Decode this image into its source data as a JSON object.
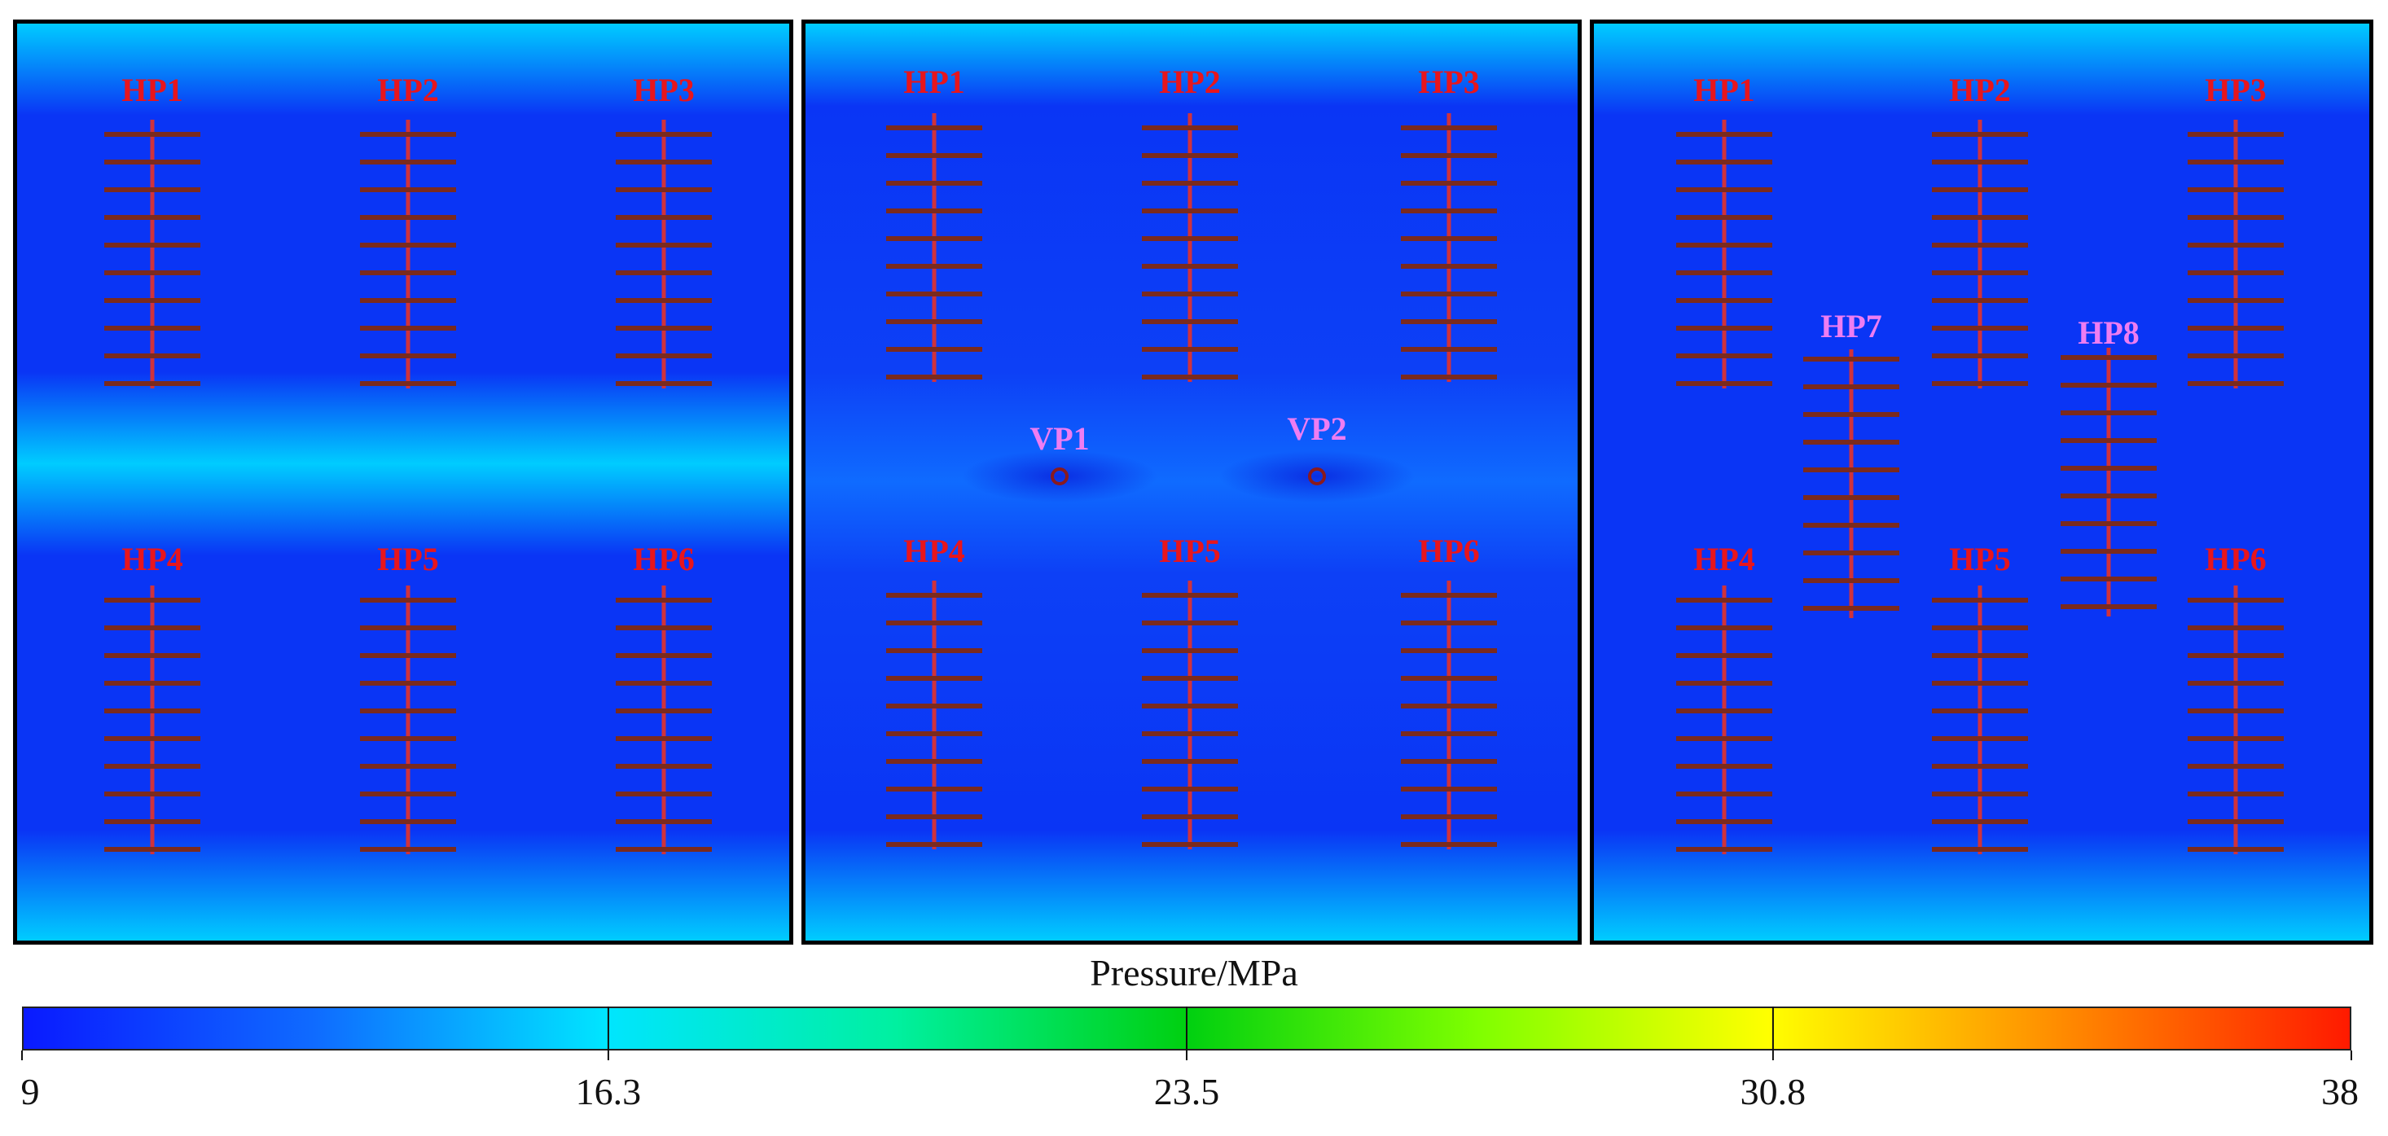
{
  "legend": {
    "title": "Pressure/MPa",
    "min": 9,
    "max": 38,
    "ticks": [
      "9",
      "16.3",
      "23.5",
      "30.8",
      "38"
    ],
    "colors": [
      "#0a1aff",
      "#0f6bff",
      "#00e5ff",
      "#00f0a0",
      "#00d010",
      "#7fff00",
      "#ffff00",
      "#ff8c00",
      "#ff1a00"
    ]
  },
  "field_colors": {
    "high": "#00ccff",
    "low": "#0a35f5"
  },
  "well_colors": {
    "fracture": "#7a2a1e",
    "wellbore": "#d0323c",
    "vertical": "#8a1a1e"
  },
  "panels": [
    {
      "id": "a",
      "wells": [
        {
          "label": "HP1",
          "label_color": "red"
        },
        {
          "label": "HP2",
          "label_color": "red"
        },
        {
          "label": "HP3",
          "label_color": "red"
        },
        {
          "label": "HP4",
          "label_color": "red"
        },
        {
          "label": "HP5",
          "label_color": "red"
        },
        {
          "label": "HP6",
          "label_color": "red"
        }
      ],
      "vertical_wells": []
    },
    {
      "id": "b",
      "wells": [
        {
          "label": "HP1",
          "label_color": "red"
        },
        {
          "label": "HP2",
          "label_color": "red"
        },
        {
          "label": "HP3",
          "label_color": "red"
        },
        {
          "label": "HP4",
          "label_color": "red"
        },
        {
          "label": "HP5",
          "label_color": "red"
        },
        {
          "label": "HP6",
          "label_color": "red"
        }
      ],
      "vertical_wells": [
        {
          "label": "VP1"
        },
        {
          "label": "VP2"
        }
      ]
    },
    {
      "id": "c",
      "wells": [
        {
          "label": "HP1",
          "label_color": "red"
        },
        {
          "label": "HP2",
          "label_color": "red"
        },
        {
          "label": "HP3",
          "label_color": "red"
        },
        {
          "label": "HP4",
          "label_color": "red"
        },
        {
          "label": "HP5",
          "label_color": "red"
        },
        {
          "label": "HP6",
          "label_color": "red"
        },
        {
          "label": "HP7",
          "label_color": "pink"
        },
        {
          "label": "HP8",
          "label_color": "pink"
        }
      ],
      "vertical_wells": []
    }
  ]
}
